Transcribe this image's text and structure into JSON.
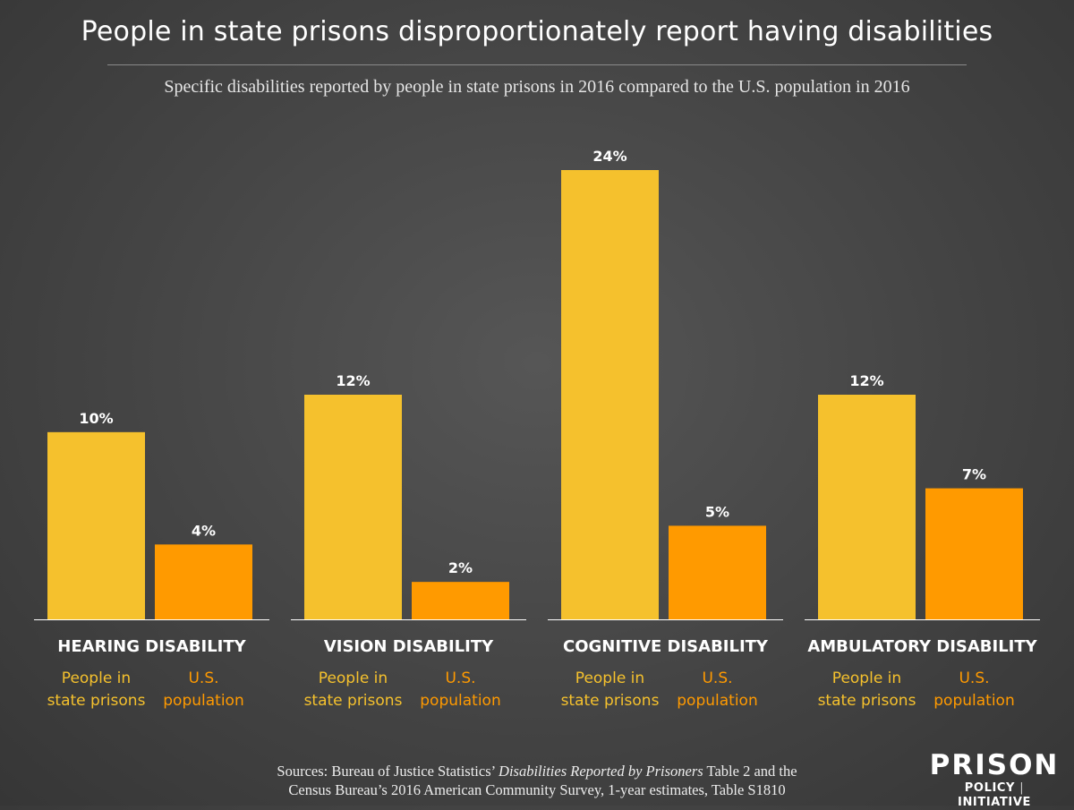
{
  "chart_data": {
    "type": "bar",
    "title": "People in state prisons disproportionately report having disabilities",
    "subtitle": "Specific disabilities reported by people in state prisons in 2016 compared to the U.S. population in 2016",
    "categories": [
      "HEARING DISABILITY",
      "VISION DISABILITY",
      "COGNITIVE DISABILITY",
      "AMBULATORY DISABILITY"
    ],
    "series": [
      {
        "name": "People in state prisons",
        "legend_lines": [
          "People in",
          "state prisons"
        ],
        "values": [
          10,
          12,
          24,
          12
        ],
        "value_labels": [
          "10%",
          "12%",
          "24%",
          "12%"
        ],
        "color": "#F5C12D"
      },
      {
        "name": "U.S. population",
        "legend_lines": [
          "U.S.",
          "population"
        ],
        "values": [
          4,
          2,
          5,
          7
        ],
        "value_labels": [
          "4%",
          "2%",
          "5%",
          "7%"
        ],
        "color": "#FF9A00"
      }
    ],
    "ylim": [
      0,
      24
    ],
    "xlabel": "",
    "ylabel": "",
    "grid": false
  },
  "sources": {
    "line1_prefix": "Sources: Bureau of Justice Statistics’ ",
    "line1_italic": "Disabilities Reported by Prisoners",
    "line1_suffix": " Table 2 and the",
    "line2": "Census Bureau’s 2016 American Community Survey, 1-year estimates, Table S1810"
  },
  "logo": {
    "top": "PRISON",
    "bottom_left": "POLICY",
    "separator": "|",
    "bottom_right": "INITIATIVE"
  },
  "colors": {
    "background": "#444444",
    "prison_bar": "#F5C12D",
    "us_bar": "#FF9A00",
    "text": "#FFFFFF"
  }
}
